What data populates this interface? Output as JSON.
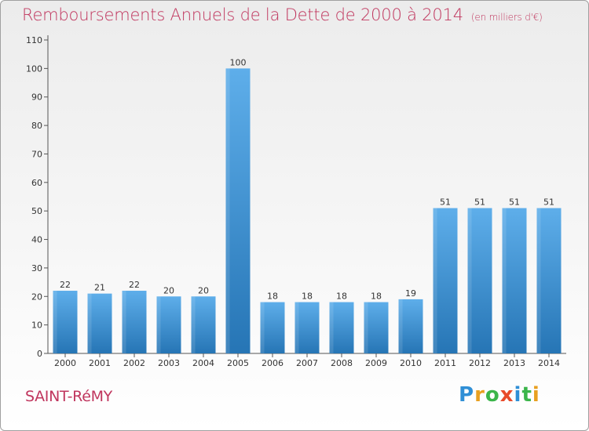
{
  "title": "Remboursements Annuels de la Dette de 2000 à 2014",
  "unit_label": "(en milliers d'€)",
  "commune": "SAINT-RéMY",
  "brand": "Proxiti",
  "colors": {
    "title": "#c0365e",
    "bar_light": "#5aaae8",
    "bar_dark": "#2a7ab8",
    "axis": "#333333",
    "grid": "#dddddd"
  },
  "chart_data": {
    "type": "bar",
    "title": "Remboursements Annuels de la Dette de 2000 à 2014",
    "xlabel": "",
    "ylabel": "",
    "categories": [
      "2000",
      "2001",
      "2002",
      "2003",
      "2004",
      "2005",
      "2006",
      "2007",
      "2008",
      "2009",
      "2010",
      "2011",
      "2012",
      "2013",
      "2014"
    ],
    "values": [
      22,
      21,
      22,
      20,
      20,
      100,
      18,
      18,
      18,
      18,
      19,
      51,
      51,
      51,
      51
    ],
    "ylim": [
      0,
      110
    ],
    "yticks": [
      0,
      10,
      20,
      30,
      40,
      50,
      60,
      70,
      80,
      90,
      100,
      110
    ],
    "grid": false,
    "data_labels": true
  }
}
